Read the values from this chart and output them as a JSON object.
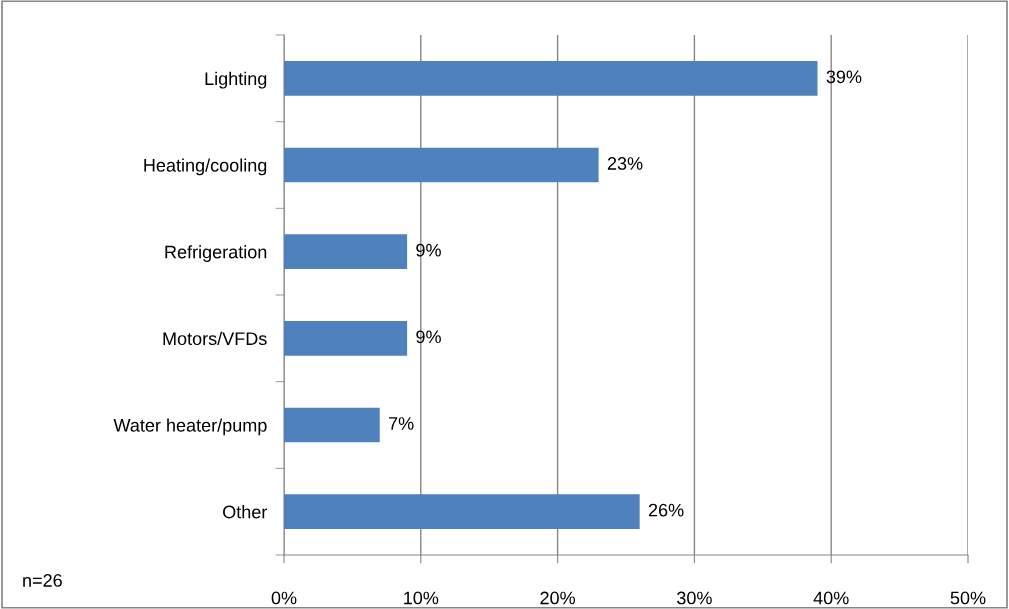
{
  "chart_data": {
    "type": "bar",
    "orientation": "horizontal",
    "categories": [
      "Lighting",
      "Heating/cooling",
      "Refrigeration",
      "Motors/VFDs",
      "Water heater/pump",
      "Other"
    ],
    "values": [
      39,
      23,
      9,
      9,
      7,
      26
    ],
    "value_labels": [
      "39%",
      "23%",
      "9%",
      "9%",
      "7%",
      "26%"
    ],
    "color": "#4f81bd",
    "xlim": [
      0,
      50
    ],
    "xticks": [
      {
        "value": 0,
        "label": "0%"
      },
      {
        "value": 10,
        "label": "10%"
      },
      {
        "value": 20,
        "label": "20%"
      },
      {
        "value": 30,
        "label": "30%"
      },
      {
        "value": 40,
        "label": "40%"
      },
      {
        "value": 50,
        "label": "50%"
      }
    ],
    "grid": "x",
    "annotations": [
      "n=26"
    ]
  }
}
